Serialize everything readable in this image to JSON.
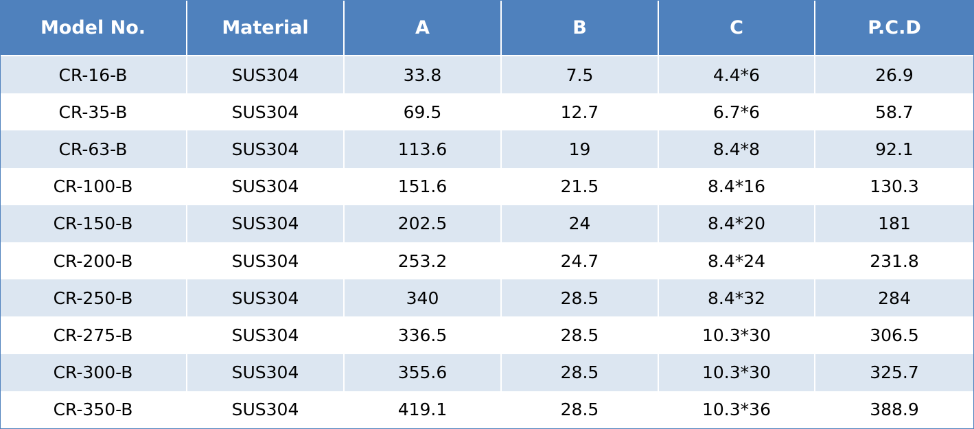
{
  "table": {
    "columns": [
      "Model No.",
      "Material",
      "A",
      "B",
      "C",
      "P.C.D"
    ],
    "rows": [
      [
        "CR-16-B",
        "SUS304",
        "33.8",
        "7.5",
        "4.4*6",
        "26.9"
      ],
      [
        "CR-35-B",
        "SUS304",
        "69.5",
        "12.7",
        "6.7*6",
        "58.7"
      ],
      [
        "CR-63-B",
        "SUS304",
        "113.6",
        "19",
        "8.4*8",
        "92.1"
      ],
      [
        "CR-100-B",
        "SUS304",
        "151.6",
        "21.5",
        "8.4*16",
        "130.3"
      ],
      [
        "CR-150-B",
        "SUS304",
        "202.5",
        "24",
        "8.4*20",
        "181"
      ],
      [
        "CR-200-B",
        "SUS304",
        "253.2",
        "24.7",
        "8.4*24",
        "231.8"
      ],
      [
        "CR-250-B",
        "SUS304",
        "340",
        "28.5",
        "8.4*32",
        "284"
      ],
      [
        "CR-275-B",
        "SUS304",
        "336.5",
        "28.5",
        "10.3*30",
        "306.5"
      ],
      [
        "CR-300-B",
        "SUS304",
        "355.6",
        "28.5",
        "10.3*30",
        "325.7"
      ],
      [
        "CR-350-B",
        "SUS304",
        "419.1",
        "28.5",
        "10.3*36",
        "388.9"
      ]
    ]
  },
  "colors": {
    "header_bg": "#4f81bd",
    "header_text": "#ffffff",
    "band_row": "#dce6f1",
    "plain_row": "#ffffff",
    "cell_text": "#000000"
  }
}
